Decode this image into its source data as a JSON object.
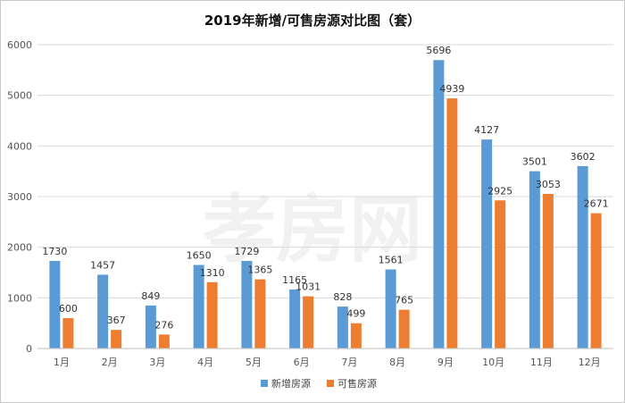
{
  "chart_data": {
    "type": "bar",
    "title": "2019年新增/可售房源对比图（套）",
    "categories": [
      "1月",
      "2月",
      "3月",
      "4月",
      "5月",
      "6月",
      "7月",
      "8月",
      "9月",
      "10月",
      "11月",
      "12月"
    ],
    "series": [
      {
        "name": "新增房源",
        "color": "#5b9bd5",
        "values": [
          1730,
          1457,
          849,
          1650,
          1729,
          1165,
          828,
          1561,
          5696,
          4127,
          3501,
          3602
        ]
      },
      {
        "name": "可售房源",
        "color": "#ed7d31",
        "values": [
          600,
          367,
          276,
          1310,
          1365,
          1031,
          499,
          765,
          4939,
          2925,
          3053,
          2671
        ]
      }
    ],
    "ylim": [
      0,
      6000
    ],
    "yticks": [
      0,
      1000,
      2000,
      3000,
      4000,
      5000,
      6000
    ],
    "xlabel": "",
    "ylabel": "",
    "legend": "bottom"
  },
  "watermark": "孝房网"
}
